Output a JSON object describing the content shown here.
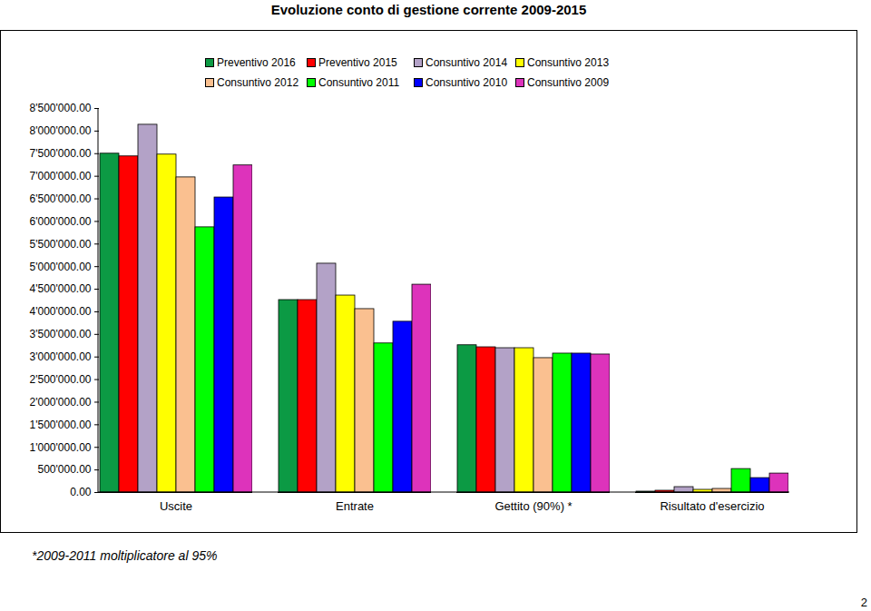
{
  "chart_data": {
    "type": "bar",
    "title": "Evoluzione conto di gestione corrente 2009-2015",
    "categories": [
      "Uscite",
      "Entrate",
      "Gettito (90%) *",
      "Risultato d'esercizio"
    ],
    "series": [
      {
        "name": "Preventivo 2016",
        "color": "#0c9a44",
        "values": [
          7500000,
          4260000,
          3260000,
          20000
        ]
      },
      {
        "name": "Preventivo 2015",
        "color": "#ff0000",
        "values": [
          7440000,
          4260000,
          3215000,
          40000
        ]
      },
      {
        "name": "Consuntivo 2014",
        "color": "#b3a2c7",
        "values": [
          8140000,
          5065000,
          3195000,
          120000
        ]
      },
      {
        "name": "Consuntivo 2013",
        "color": "#ffff00",
        "values": [
          7480000,
          4360000,
          3195000,
          60000
        ]
      },
      {
        "name": "Consuntivo 2012",
        "color": "#fac090",
        "values": [
          6975000,
          4060000,
          2975000,
          80000
        ]
      },
      {
        "name": "Consuntivo 2011",
        "color": "#00ff00",
        "values": [
          5870000,
          3300000,
          3075000,
          520000
        ]
      },
      {
        "name": "Consuntivo 2010",
        "color": "#0000ff",
        "values": [
          6530000,
          3780000,
          3075000,
          320000
        ]
      },
      {
        "name": "Consuntivo 2009",
        "color": "#dd33bb",
        "values": [
          7240000,
          4600000,
          3055000,
          420000
        ]
      }
    ],
    "ylim": [
      0,
      8500000
    ],
    "yticks": [
      {
        "value": 0,
        "label": "0.00"
      },
      {
        "value": 500000,
        "label": "500'000.00"
      },
      {
        "value": 1000000,
        "label": "1'000'000.00"
      },
      {
        "value": 1500000,
        "label": "1'500'000.00"
      },
      {
        "value": 2000000,
        "label": "2'000'000.00"
      },
      {
        "value": 2500000,
        "label": "2'500'000.00"
      },
      {
        "value": 3000000,
        "label": "3'000'000.00"
      },
      {
        "value": 3500000,
        "label": "3'500'000.00"
      },
      {
        "value": 4000000,
        "label": "4'000'000.00"
      },
      {
        "value": 4500000,
        "label": "4'500'000.00"
      },
      {
        "value": 5000000,
        "label": "5'000'000.00"
      },
      {
        "value": 5500000,
        "label": "5'500'000.00"
      },
      {
        "value": 6000000,
        "label": "6'000'000.00"
      },
      {
        "value": 6500000,
        "label": "6'500'000.00"
      },
      {
        "value": 7000000,
        "label": "7'000'000.00"
      },
      {
        "value": 7500000,
        "label": "7'500'000.00"
      },
      {
        "value": 8000000,
        "label": "8'000'000.00"
      },
      {
        "value": 8500000,
        "label": "8'500'000.00"
      }
    ],
    "grid": false,
    "legend": "top",
    "data_labels": false,
    "annotations": [
      "*2009-2011 moltiplicatore al 95%",
      "2"
    ]
  }
}
